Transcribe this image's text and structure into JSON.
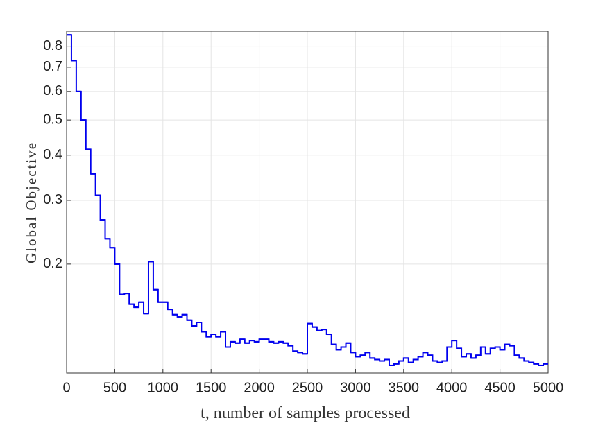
{
  "chart_data": {
    "type": "stairs",
    "xlabel": "t, number of samples processed",
    "ylabel": "Global Objective",
    "xlim": [
      0,
      5000
    ],
    "xticks": [
      0,
      500,
      1000,
      1500,
      2000,
      2500,
      3000,
      3500,
      4000,
      4500,
      5000
    ],
    "ylim": [
      0.1,
      0.88
    ],
    "yticks": [
      0.2,
      0.3,
      0.4,
      0.5,
      0.6,
      0.7,
      0.8
    ],
    "log_y": true,
    "grid": true,
    "series": [
      {
        "color": "#0000ee",
        "x": [
          0,
          50,
          100,
          150,
          200,
          250,
          300,
          350,
          400,
          450,
          500,
          550,
          600,
          650,
          700,
          750,
          800,
          850,
          900,
          950,
          1000,
          1050,
          1100,
          1150,
          1200,
          1250,
          1300,
          1350,
          1400,
          1450,
          1500,
          1550,
          1600,
          1650,
          1700,
          1750,
          1800,
          1850,
          1900,
          1950,
          2000,
          2050,
          2100,
          2150,
          2200,
          2250,
          2300,
          2350,
          2400,
          2450,
          2500,
          2550,
          2600,
          2650,
          2700,
          2750,
          2800,
          2850,
          2900,
          2950,
          3000,
          3050,
          3100,
          3150,
          3200,
          3250,
          3300,
          3350,
          3400,
          3450,
          3500,
          3550,
          3600,
          3650,
          3700,
          3750,
          3800,
          3850,
          3900,
          3950,
          4000,
          4050,
          4100,
          4150,
          4200,
          4250,
          4300,
          4350,
          4400,
          4450,
          4500,
          4550,
          4600,
          4650,
          4700,
          4750,
          4800,
          4850,
          4900,
          4950
        ],
        "values": [
          0.86,
          0.73,
          0.6,
          0.5,
          0.415,
          0.355,
          0.31,
          0.265,
          0.235,
          0.222,
          0.2,
          0.165,
          0.166,
          0.155,
          0.152,
          0.157,
          0.146,
          0.203,
          0.17,
          0.157,
          0.157,
          0.15,
          0.145,
          0.143,
          0.145,
          0.14,
          0.135,
          0.138,
          0.13,
          0.126,
          0.128,
          0.126,
          0.13,
          0.118,
          0.122,
          0.121,
          0.124,
          0.121,
          0.123,
          0.122,
          0.124,
          0.124,
          0.122,
          0.121,
          0.122,
          0.121,
          0.119,
          0.115,
          0.114,
          0.113,
          0.137,
          0.134,
          0.131,
          0.132,
          0.128,
          0.12,
          0.116,
          0.118,
          0.121,
          0.114,
          0.111,
          0.112,
          0.114,
          0.11,
          0.109,
          0.108,
          0.109,
          0.105,
          0.106,
          0.108,
          0.11,
          0.107,
          0.109,
          0.111,
          0.114,
          0.112,
          0.108,
          0.107,
          0.108,
          0.118,
          0.123,
          0.117,
          0.111,
          0.113,
          0.11,
          0.112,
          0.118,
          0.113,
          0.117,
          0.118,
          0.116,
          0.12,
          0.119,
          0.112,
          0.11,
          0.108,
          0.107,
          0.106,
          0.105,
          0.106
        ]
      }
    ]
  }
}
